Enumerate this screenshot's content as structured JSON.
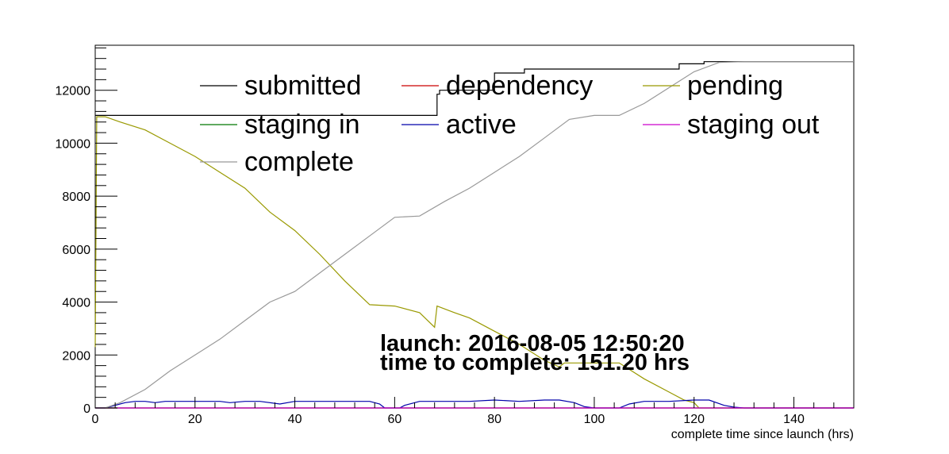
{
  "chart_data": {
    "type": "line",
    "xlabel": "complete time since launch (hrs)",
    "ylabel": "",
    "xlim": [
      0,
      152
    ],
    "ylim": [
      0,
      13700
    ],
    "x_ticks": [
      0,
      20,
      40,
      60,
      80,
      100,
      120,
      140
    ],
    "y_ticks": [
      0,
      2000,
      4000,
      6000,
      8000,
      10000,
      12000
    ],
    "grid": false,
    "legend_position": "top",
    "annotations": [
      "launch: 2016-08-05 12:50:20",
      "time to complete: 151.20 hrs"
    ],
    "series": [
      {
        "name": "submitted",
        "color": "#000000",
        "step": true,
        "points": [
          [
            0,
            11050
          ],
          [
            68.5,
            11050
          ],
          [
            68.5,
            11850
          ],
          [
            69,
            11850
          ],
          [
            69,
            12000
          ],
          [
            80,
            12000
          ],
          [
            80,
            12650
          ],
          [
            86,
            12650
          ],
          [
            86,
            12800
          ],
          [
            117,
            12800
          ],
          [
            117,
            13000
          ],
          [
            122,
            13000
          ],
          [
            122,
            13080
          ],
          [
            152,
            13080
          ]
        ]
      },
      {
        "name": "dependency",
        "color": "#cc0000",
        "points": [
          [
            0,
            0
          ],
          [
            152,
            0
          ]
        ]
      },
      {
        "name": "pending",
        "color": "#999900",
        "points": [
          [
            0,
            2300
          ],
          [
            0.3,
            11000
          ],
          [
            2,
            11000
          ],
          [
            5,
            10800
          ],
          [
            10,
            10500
          ],
          [
            15,
            10000
          ],
          [
            20,
            9500
          ],
          [
            25,
            8900
          ],
          [
            30,
            8300
          ],
          [
            35,
            7400
          ],
          [
            40,
            6700
          ],
          [
            45,
            5800
          ],
          [
            50,
            4800
          ],
          [
            55,
            3900
          ],
          [
            60,
            3850
          ],
          [
            65,
            3600
          ],
          [
            68,
            3050
          ],
          [
            68.5,
            3850
          ],
          [
            72,
            3600
          ],
          [
            75,
            3400
          ],
          [
            80,
            2900
          ],
          [
            85,
            2400
          ],
          [
            90,
            1800
          ],
          [
            93,
            1550
          ],
          [
            94,
            1700
          ],
          [
            100,
            1700
          ],
          [
            105,
            1700
          ],
          [
            110,
            1100
          ],
          [
            115,
            600
          ],
          [
            118,
            300
          ],
          [
            120,
            200
          ],
          [
            121,
            0
          ],
          [
            152,
            0
          ]
        ]
      },
      {
        "name": "staging in",
        "color": "#007700",
        "points": [
          [
            0,
            0
          ],
          [
            152,
            0
          ]
        ]
      },
      {
        "name": "active",
        "color": "#0000aa",
        "points": [
          [
            0,
            0
          ],
          [
            2,
            0
          ],
          [
            4,
            100
          ],
          [
            6,
            200
          ],
          [
            8,
            250
          ],
          [
            10,
            250
          ],
          [
            12,
            200
          ],
          [
            14,
            250
          ],
          [
            17,
            250
          ],
          [
            20,
            250
          ],
          [
            25,
            250
          ],
          [
            27,
            200
          ],
          [
            30,
            250
          ],
          [
            33,
            250
          ],
          [
            37,
            150
          ],
          [
            40,
            250
          ],
          [
            45,
            250
          ],
          [
            50,
            250
          ],
          [
            55,
            250
          ],
          [
            57,
            150
          ],
          [
            58,
            0
          ],
          [
            61,
            0
          ],
          [
            62,
            100
          ],
          [
            65,
            250
          ],
          [
            70,
            250
          ],
          [
            75,
            250
          ],
          [
            80,
            300
          ],
          [
            85,
            250
          ],
          [
            90,
            300
          ],
          [
            93,
            300
          ],
          [
            96,
            200
          ],
          [
            98,
            50
          ],
          [
            100,
            0
          ],
          [
            105,
            0
          ],
          [
            107,
            150
          ],
          [
            110,
            250
          ],
          [
            115,
            250
          ],
          [
            120,
            300
          ],
          [
            123,
            300
          ],
          [
            126,
            100
          ],
          [
            128,
            30
          ],
          [
            130,
            0
          ],
          [
            152,
            0
          ]
        ]
      },
      {
        "name": "staging out",
        "color": "#cc00cc",
        "points": [
          [
            0,
            0
          ],
          [
            152,
            0
          ]
        ]
      },
      {
        "name": "complete",
        "color": "#999999",
        "points": [
          [
            0,
            0
          ],
          [
            2,
            0
          ],
          [
            5,
            200
          ],
          [
            10,
            700
          ],
          [
            15,
            1400
          ],
          [
            20,
            2000
          ],
          [
            25,
            2600
          ],
          [
            30,
            3300
          ],
          [
            35,
            4000
          ],
          [
            40,
            4400
          ],
          [
            45,
            5100
          ],
          [
            50,
            5800
          ],
          [
            55,
            6500
          ],
          [
            60,
            7200
          ],
          [
            65,
            7250
          ],
          [
            70,
            7800
          ],
          [
            75,
            8300
          ],
          [
            80,
            8900
          ],
          [
            85,
            9500
          ],
          [
            90,
            10200
          ],
          [
            95,
            10900
          ],
          [
            100,
            11050
          ],
          [
            105,
            11050
          ],
          [
            110,
            11500
          ],
          [
            115,
            12100
          ],
          [
            120,
            12700
          ],
          [
            125,
            13050
          ],
          [
            130,
            13080
          ],
          [
            152,
            13080
          ]
        ]
      }
    ],
    "legend_layout": [
      [
        "submitted",
        "dependency",
        "pending"
      ],
      [
        "staging in",
        "active",
        "staging out"
      ],
      [
        "complete"
      ]
    ]
  }
}
